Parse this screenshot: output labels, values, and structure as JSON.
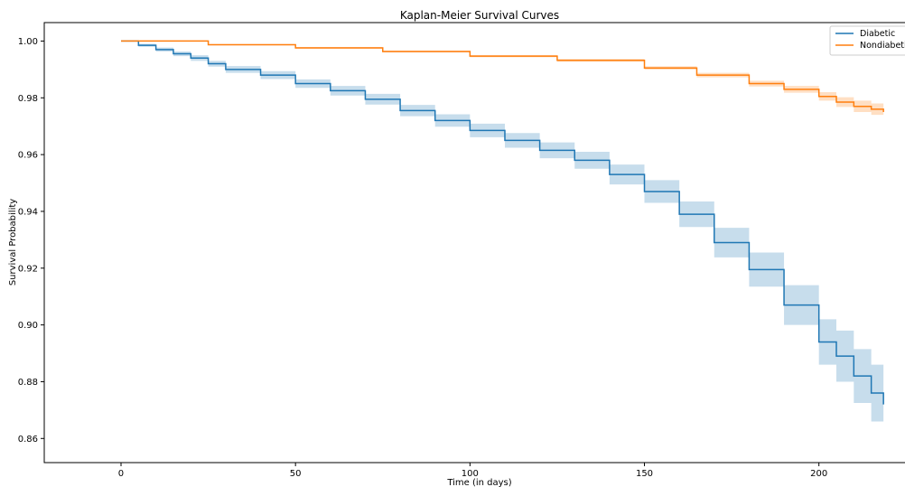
{
  "chart_data": {
    "type": "line",
    "title": "Kaplan-Meier Survival Curves",
    "xlabel": "Time (in days)",
    "ylabel": "Survival Probability",
    "xlim": [
      -22,
      227
    ],
    "ylim": [
      0.8515,
      1.0065
    ],
    "xticks": [
      0,
      50,
      100,
      150,
      200
    ],
    "xtick_labels": [
      "0",
      "50",
      "100",
      "150",
      "200"
    ],
    "yticks": [
      0.86,
      0.88,
      0.9,
      0.92,
      0.94,
      0.96,
      0.98,
      1.0
    ],
    "ytick_labels": [
      "0.86",
      "0.88",
      "0.90",
      "0.92",
      "0.94",
      "0.96",
      "0.98",
      "1.00"
    ],
    "grid": false,
    "legend_position": "top-right",
    "series": [
      {
        "name": "Diabetic",
        "color": "#1f77b4",
        "band_color": "#1f77b4",
        "x": [
          0,
          5,
          10,
          15,
          20,
          25,
          30,
          40,
          50,
          60,
          70,
          80,
          90,
          100,
          110,
          120,
          130,
          140,
          150,
          160,
          170,
          180,
          190,
          200,
          205,
          210,
          215,
          218.5
        ],
        "y": [
          1.0,
          0.9985,
          0.997,
          0.9955,
          0.994,
          0.992,
          0.99,
          0.988,
          0.985,
          0.9825,
          0.9795,
          0.9755,
          0.972,
          0.9685,
          0.965,
          0.9615,
          0.958,
          0.953,
          0.947,
          0.939,
          0.929,
          0.9195,
          0.907,
          0.894,
          0.889,
          0.882,
          0.876,
          0.872
        ],
        "ci_lower": [
          1.0,
          0.998,
          0.9963,
          0.9947,
          0.993,
          0.991,
          0.9888,
          0.9866,
          0.9835,
          0.9808,
          0.9776,
          0.9735,
          0.9698,
          0.9661,
          0.9624,
          0.9587,
          0.955,
          0.9495,
          0.943,
          0.9345,
          0.9238,
          0.9135,
          0.9,
          0.886,
          0.88,
          0.8725,
          0.866,
          0.859
        ],
        "ci_upper": [
          1.0,
          0.999,
          0.9977,
          0.9963,
          0.995,
          0.993,
          0.9912,
          0.9894,
          0.9865,
          0.9842,
          0.9814,
          0.9775,
          0.9742,
          0.9709,
          0.9676,
          0.9643,
          0.961,
          0.9565,
          0.951,
          0.9435,
          0.9342,
          0.9255,
          0.914,
          0.902,
          0.898,
          0.8915,
          0.886,
          0.884
        ]
      },
      {
        "name": "Nondiabetic",
        "color": "#ff7f0e",
        "band_color": "#ff7f0e",
        "x": [
          0,
          25,
          50,
          75,
          100,
          125,
          150,
          165,
          180,
          190,
          200,
          205,
          210,
          215,
          218.5
        ],
        "y": [
          1.0,
          0.9987,
          0.9976,
          0.9963,
          0.9947,
          0.9932,
          0.9905,
          0.988,
          0.985,
          0.983,
          0.9805,
          0.9785,
          0.977,
          0.976,
          0.975
        ],
        "ci_lower": [
          1.0,
          0.9985,
          0.9973,
          0.996,
          0.9943,
          0.9927,
          0.9899,
          0.9872,
          0.984,
          0.9818,
          0.979,
          0.9768,
          0.975,
          0.974,
          0.973
        ],
        "ci_upper": [
          1.0,
          0.9989,
          0.9979,
          0.9966,
          0.9951,
          0.9937,
          0.9911,
          0.9888,
          0.986,
          0.9842,
          0.982,
          0.9802,
          0.979,
          0.978,
          0.977
        ]
      }
    ]
  }
}
